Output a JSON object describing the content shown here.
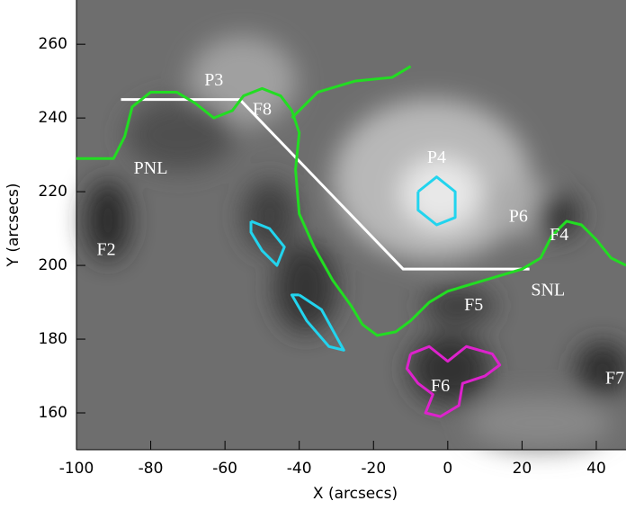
{
  "chart_data": {
    "type": "image",
    "xlabel": "X (arcsecs)",
    "ylabel": "Y (arcsecs)",
    "xlim": [
      -100,
      48
    ],
    "ylim": [
      150,
      272
    ],
    "xticks": [
      -100,
      -80,
      -60,
      -40,
      -20,
      0,
      20,
      40
    ],
    "yticks": [
      160,
      180,
      200,
      220,
      240,
      260
    ],
    "lines": [
      {
        "color": "#ffffff",
        "x": [
          -88,
          -56,
          -12,
          22
        ],
        "y": [
          245,
          245,
          199,
          199
        ]
      },
      {
        "color": "#22dd22",
        "x": [
          -100,
          -90,
          -87,
          -85,
          -80,
          -73,
          -68,
          -63,
          -58,
          -55,
          -50,
          -45,
          -42,
          -40,
          -41,
          -40,
          -36,
          -31,
          -26,
          -23,
          -19,
          -14,
          -10,
          -5,
          0,
          10,
          20,
          25,
          28,
          32,
          36,
          40,
          44,
          48,
          null,
          -42,
          -35,
          -25,
          -15,
          -10
        ],
        "y": [
          229,
          229,
          235,
          243,
          247,
          247,
          244,
          240,
          242,
          246,
          248,
          246,
          242,
          236,
          226,
          214,
          205,
          196,
          189,
          184,
          181,
          182,
          185,
          190,
          193,
          196,
          199,
          202,
          208,
          212,
          211,
          207,
          202,
          200,
          null,
          240,
          247,
          250,
          251,
          254
        ]
      },
      {
        "color": "#22d4ee",
        "x": [
          -53,
          -48,
          -44,
          -46,
          -50,
          -53,
          -53,
          null,
          -40,
          -34,
          -28,
          -32,
          -38,
          -42,
          -40,
          null,
          -8,
          -3,
          2,
          2,
          -3,
          -8,
          -8
        ],
        "y": [
          212,
          210,
          205,
          200,
          204,
          209,
          212,
          null,
          192,
          188,
          177,
          178,
          185,
          192,
          192,
          null,
          220,
          224,
          220,
          213,
          211,
          215,
          220
        ]
      },
      {
        "color": "#dd22cc",
        "x": [
          -10,
          -5,
          0,
          5,
          12,
          14,
          10,
          4,
          3,
          -2,
          -6,
          -4,
          -8,
          -11,
          -10
        ],
        "y": [
          176,
          178,
          174,
          178,
          176,
          173,
          170,
          168,
          162,
          159,
          160,
          165,
          168,
          172,
          176
        ]
      }
    ],
    "annotations": [
      {
        "text": "F2",
        "x": -92,
        "y": 204
      },
      {
        "text": "P3",
        "x": -63,
        "y": 250
      },
      {
        "text": "F8",
        "x": -50,
        "y": 242
      },
      {
        "text": "PNL",
        "x": -80,
        "y": 226
      },
      {
        "text": "P4",
        "x": -3,
        "y": 229
      },
      {
        "text": "P6",
        "x": 19,
        "y": 213
      },
      {
        "text": "F4",
        "x": 30,
        "y": 208
      },
      {
        "text": "SNL",
        "x": 27,
        "y": 193
      },
      {
        "text": "F5",
        "x": 7,
        "y": 189
      },
      {
        "text": "F6",
        "x": -2,
        "y": 167
      },
      {
        "text": "F7",
        "x": 45,
        "y": 169
      }
    ]
  }
}
